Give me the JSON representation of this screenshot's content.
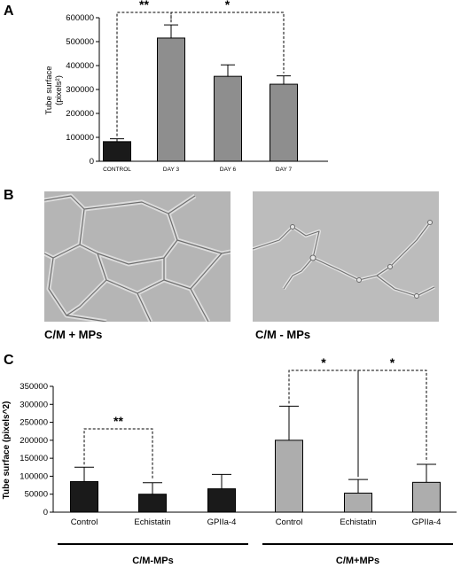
{
  "panels": {
    "a": "A",
    "b": "B",
    "c": "C"
  },
  "chart_data": [
    {
      "type": "bar",
      "ylabel": "Tube surface (pixels²)",
      "ylabel_lines": [
        "Tube surface",
        "(pixels²)"
      ],
      "categories": [
        "CONTROL",
        "DAY 3",
        "DAY 6",
        "DAY 7"
      ],
      "values": [
        82000,
        515000,
        355000,
        322000
      ],
      "errors": [
        12000,
        55000,
        48000,
        35000
      ],
      "colors": [
        "#1a1a1a",
        "#8e8e8e",
        "#8e8e8e",
        "#8e8e8e"
      ],
      "ylim": [
        0,
        600000
      ],
      "yticks": [
        "0",
        "100000",
        "200000",
        "300000",
        "400000",
        "500000",
        "600000"
      ],
      "significance": [
        {
          "label": "**",
          "from": 0,
          "to": 1
        },
        {
          "label": "*",
          "from": 1,
          "to": 3
        }
      ]
    },
    {
      "type": "bar",
      "ylabel": "Tube surface (pixels^2)",
      "categories": [
        "Control",
        "Echistatin",
        "GPIIa-4",
        "Control",
        "Echistatin",
        "GPIIa-4"
      ],
      "values": [
        85000,
        50000,
        65000,
        200000,
        53000,
        83000
      ],
      "errors": [
        40000,
        32000,
        40000,
        95000,
        38000,
        50000
      ],
      "colors": [
        "#1a1a1a",
        "#1a1a1a",
        "#1a1a1a",
        "#adadad",
        "#adadad",
        "#adadad"
      ],
      "ylim": [
        0,
        350000
      ],
      "yticks": [
        "0",
        "50000",
        "100000",
        "150000",
        "200000",
        "250000",
        "300000",
        "350000"
      ],
      "groups": [
        {
          "label": "C/M-MPs",
          "from": 0,
          "to": 2
        },
        {
          "label": "C/M+MPs",
          "from": 3,
          "to": 5
        }
      ],
      "significance": [
        {
          "label": "**",
          "from": 0,
          "to": 1
        },
        {
          "label": "*",
          "from": 3,
          "to": 4
        },
        {
          "label": "*",
          "from": 4,
          "to": 5
        }
      ]
    }
  ],
  "micrographs": {
    "left_label": "C/M + MPs",
    "right_label": "C/M - MPs"
  }
}
